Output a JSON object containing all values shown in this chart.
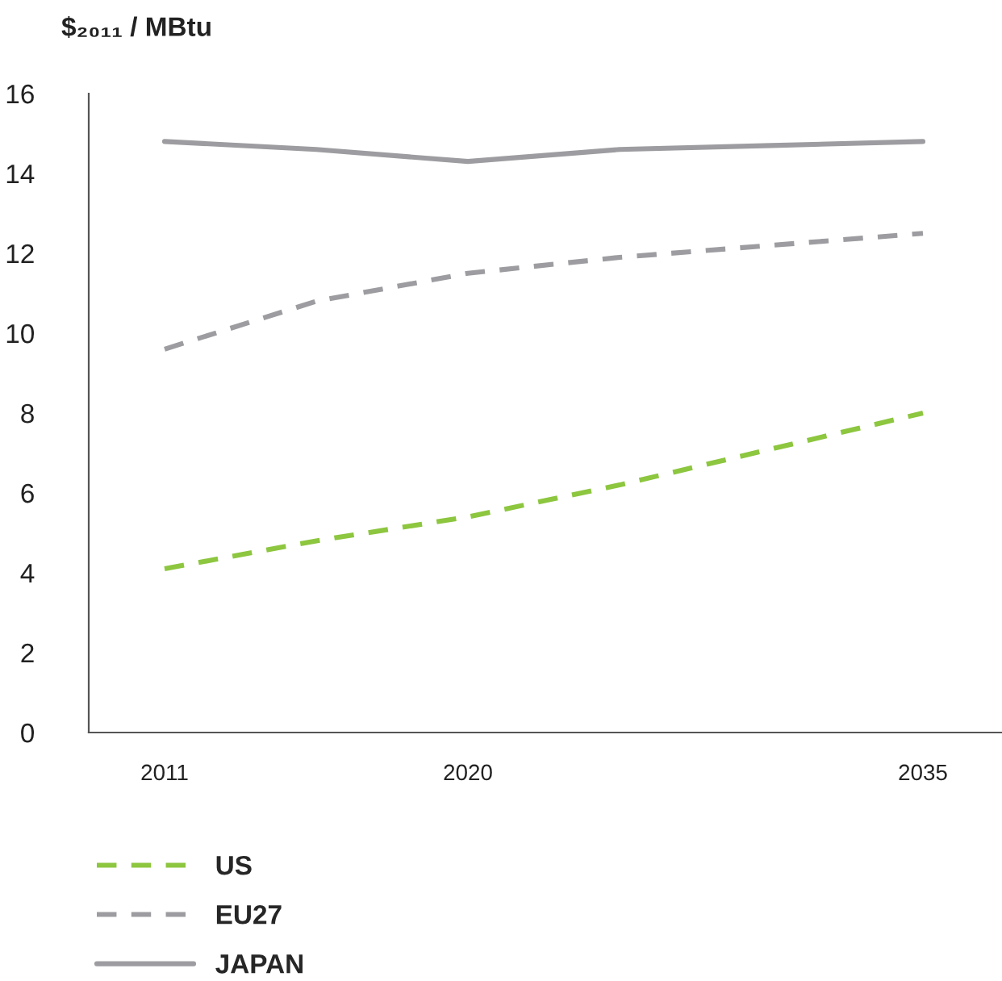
{
  "chart_data": {
    "type": "line",
    "ylabel": "$₂₀₁₁ / MBtu",
    "categories": [
      "2011",
      null,
      "2020",
      null,
      null,
      "2035"
    ],
    "ylim": [
      0,
      16
    ],
    "yticks": [
      0,
      2,
      4,
      6,
      8,
      10,
      12,
      14,
      16
    ],
    "grid": false,
    "legend": "bottom",
    "marker": "none",
    "series": [
      {
        "name": "US",
        "color": "#8dc63f",
        "line_style": "dashed",
        "values": [
          4.1,
          4.8,
          5.4,
          6.2,
          7.1,
          8.0
        ]
      },
      {
        "name": "EU27",
        "color": "#9d9da1",
        "line_style": "dashed",
        "values": [
          9.6,
          10.8,
          11.5,
          11.9,
          12.2,
          12.5
        ]
      },
      {
        "name": "JAPAN",
        "color": "#9d9da1",
        "line_style": "solid",
        "values": [
          14.8,
          14.6,
          14.3,
          14.6,
          14.7,
          14.8
        ]
      }
    ]
  }
}
